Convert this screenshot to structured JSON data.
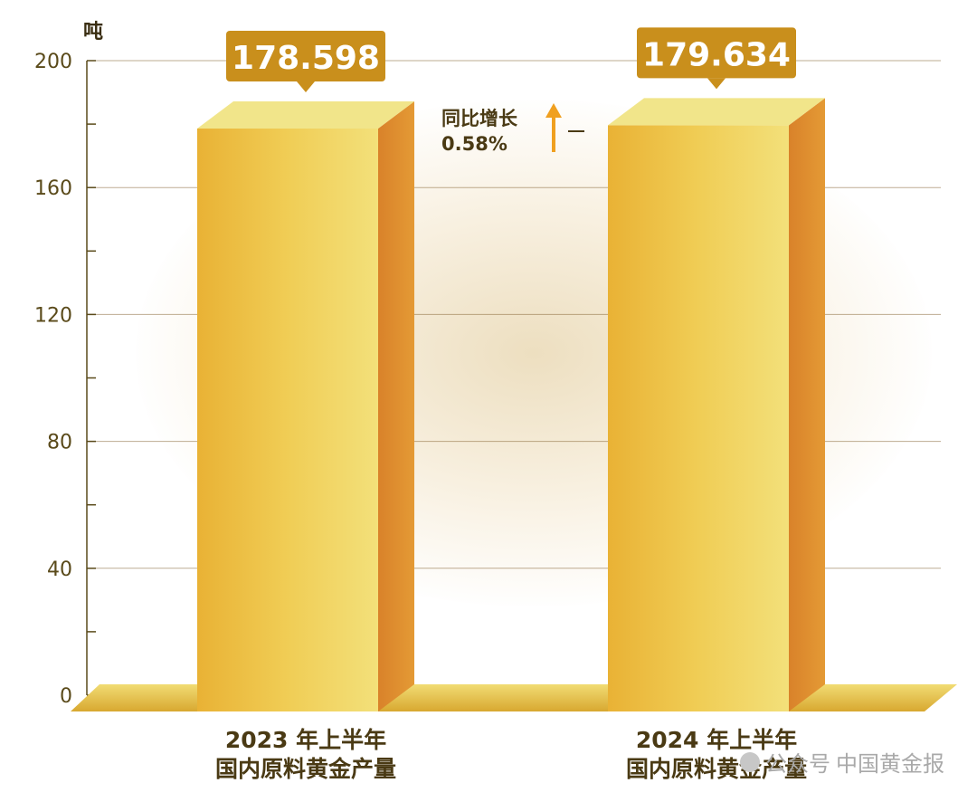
{
  "chart_data": {
    "type": "bar",
    "unit_label": "吨",
    "y_ticks": [
      "200",
      "160",
      "120",
      "80",
      "40",
      "0"
    ],
    "ylim": [
      0,
      200
    ],
    "categories": [
      [
        "2023 年上半年",
        "国内原料黄金产量"
      ],
      [
        "2024 年上半年",
        "国内原料黄金产量"
      ]
    ],
    "values": [
      178.598,
      179.634
    ],
    "value_labels": [
      "178.598",
      "179.634"
    ],
    "growth": {
      "label": "同比增长",
      "value": "0.58%"
    },
    "grid": true,
    "colors": {
      "bar_front": "#e8b63a",
      "bar_side": "#d6892a",
      "bar_top": "#f1e58a",
      "callout": "#c98f1c",
      "axis_text": "#5a4a1a",
      "arrow": "#f0a020"
    }
  },
  "watermark": {
    "prefix": "公众号",
    "name": "中国黄金报"
  }
}
